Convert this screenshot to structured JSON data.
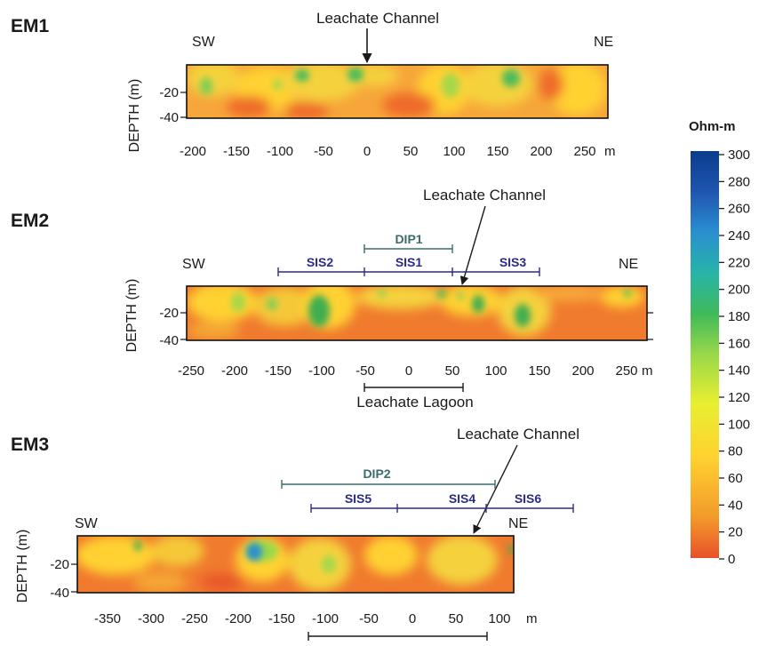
{
  "profiles": [
    {
      "title": "EM1",
      "left_label": "SW",
      "right_label": "NE",
      "depth_label": "DEPTH (m)",
      "depth_ticks": [
        "-20",
        "-40"
      ],
      "x_ticks": [
        "-200",
        "-150",
        "-100",
        "-50",
        "0",
        "50",
        "100",
        "150",
        "200",
        "250"
      ],
      "x_unit": "m",
      "annotations": [
        "Leachate Channel"
      ],
      "segments": []
    },
    {
      "title": "EM2",
      "left_label": "SW",
      "right_label": "NE",
      "depth_label": "DEPTH (m)",
      "depth_ticks": [
        "-20",
        "-40"
      ],
      "x_ticks": [
        "-250",
        "-200",
        "-150",
        "-100",
        "-50",
        "0",
        "50",
        "100",
        "150",
        "200",
        "250"
      ],
      "x_unit": "m",
      "annotations": [
        "Leachate Channel",
        "Leachate Lagoon"
      ],
      "segments": [
        "DIP1",
        "SIS2",
        "SIS1",
        "SIS3"
      ]
    },
    {
      "title": "EM3",
      "left_label": "SW",
      "right_label": "NE",
      "depth_label": "DEPTH (m)",
      "depth_ticks": [
        "-20",
        "-40"
      ],
      "x_ticks": [
        "-350",
        "-300",
        "-250",
        "-200",
        "-150",
        "-100",
        "-50",
        "0",
        "50",
        "100"
      ],
      "x_unit": "m",
      "annotations": [
        "Leachate Channel"
      ],
      "segments": [
        "DIP2",
        "SIS5",
        "SIS4",
        "SIS6"
      ]
    }
  ],
  "colorbar": {
    "title": "Ohm-m",
    "ticks": [
      "300",
      "280",
      "260",
      "240",
      "220",
      "200",
      "180",
      "160",
      "140",
      "120",
      "100",
      "80",
      "60",
      "40",
      "20",
      "0"
    ],
    "colors": [
      "#e8502a",
      "#f39a2a",
      "#ffd230",
      "#e8ef30",
      "#9ad84a",
      "#3fba5a",
      "#28b4a8",
      "#2a8fd0",
      "#1f55b0",
      "#0b3c8c"
    ]
  }
}
